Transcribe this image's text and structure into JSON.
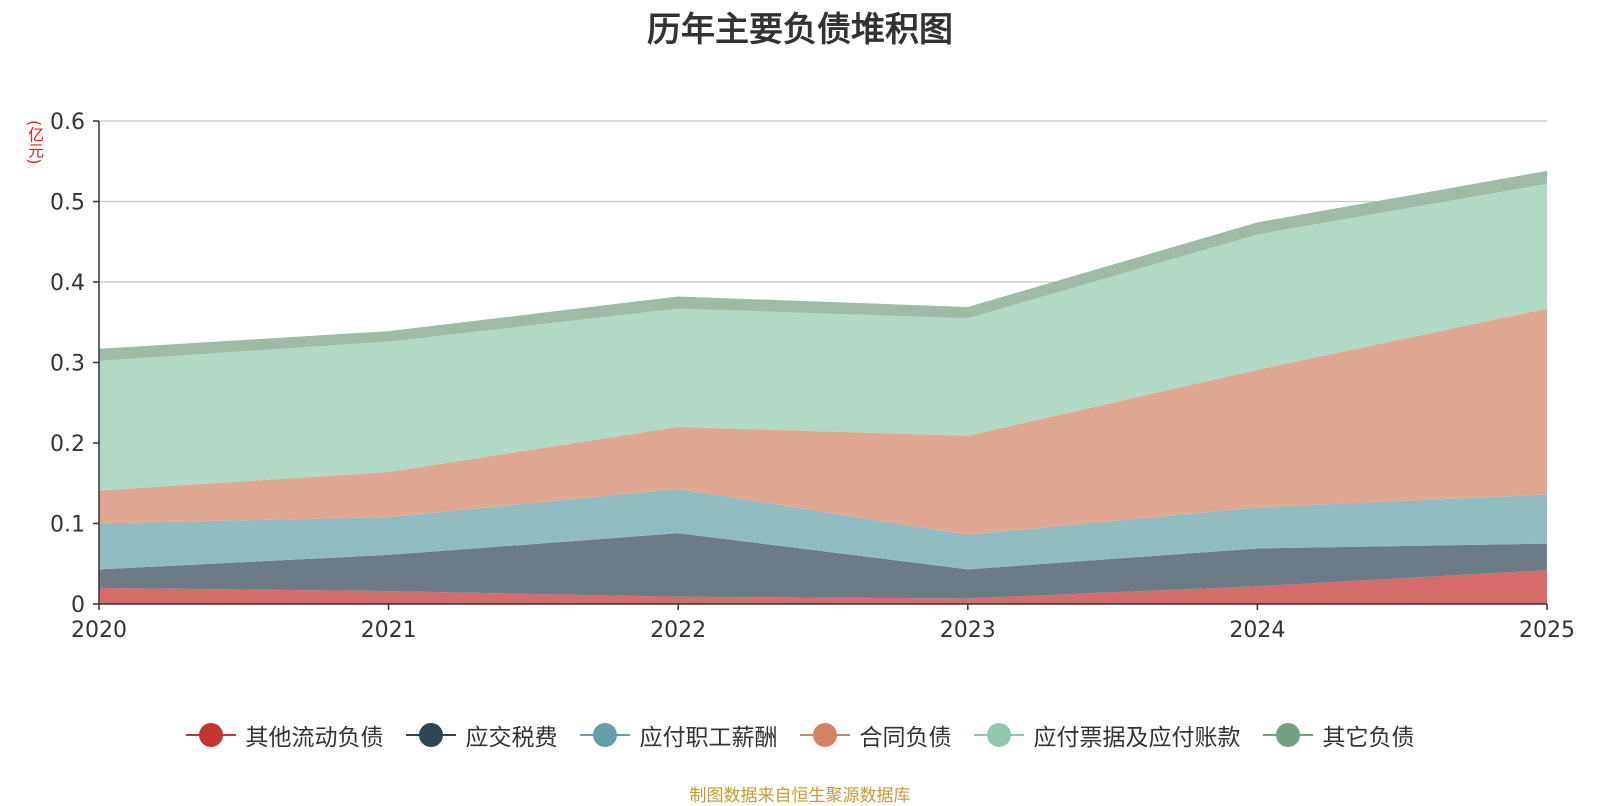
{
  "chart_data": {
    "type": "area",
    "stacked": true,
    "title": "历年主要负债堆积图",
    "ylabel": "(亿元)",
    "xlabel": "",
    "x": [
      "2020",
      "2021",
      "2022",
      "2023",
      "2024",
      "2025"
    ],
    "ylim": [
      0,
      0.6
    ],
    "yticks": [
      "0",
      "0.1",
      "0.2",
      "0.3",
      "0.4",
      "0.5",
      "0.6"
    ],
    "series": [
      {
        "name": "其他流动负债",
        "color": "#c23531",
        "fill": "#d56b6b",
        "values": [
          0.02,
          0.016,
          0.009,
          0.007,
          0.022,
          0.042
        ]
      },
      {
        "name": "应交税费",
        "color": "#2f4554",
        "fill": "#6d7b87",
        "values": [
          0.023,
          0.045,
          0.079,
          0.036,
          0.047,
          0.033
        ]
      },
      {
        "name": "应付职工薪酬",
        "color": "#61a0a8",
        "fill": "#8fbbc1",
        "values": [
          0.057,
          0.047,
          0.055,
          0.043,
          0.051,
          0.061
        ]
      },
      {
        "name": "合同负债",
        "color": "#d48265",
        "fill": "#e0a892",
        "values": [
          0.041,
          0.056,
          0.077,
          0.123,
          0.171,
          0.231
        ]
      },
      {
        "name": "应付票据及应付账款",
        "color": "#91c7ae",
        "fill": "#b2d9c6",
        "values": [
          0.161,
          0.162,
          0.147,
          0.146,
          0.168,
          0.155
        ]
      },
      {
        "name": "其它负债",
        "color": "#749f83",
        "fill": "#9dbba7",
        "values": [
          0.015,
          0.013,
          0.015,
          0.014,
          0.015,
          0.016
        ]
      }
    ],
    "legend_position": "bottom-center",
    "grid": true
  },
  "source_note": "制图数据来自恒生聚源数据库"
}
